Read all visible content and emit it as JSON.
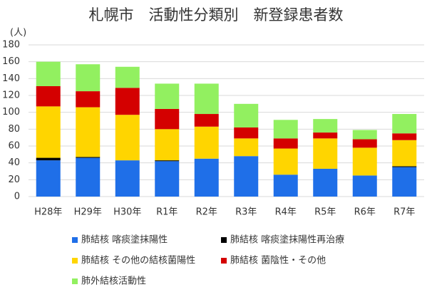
{
  "chart_data": {
    "type": "stacked-bar",
    "title": "札幌市　活動性分類別　新登録患者数",
    "y_unit": "(人)",
    "categories": [
      "H28年",
      "H29年",
      "H30年",
      "R1年",
      "R2年",
      "R3年",
      "R4年",
      "R5年",
      "R6年",
      "R7年"
    ],
    "series": [
      {
        "name": "肺結核 喀痰塗抹陽性",
        "color": "#1f6fe8",
        "values": [
          43,
          46,
          43,
          42,
          45,
          48,
          26,
          33,
          25,
          35
        ]
      },
      {
        "name": "肺結核 喀痰塗抹陽性再治療",
        "color": "#000000",
        "values": [
          3,
          1,
          0,
          1,
          0,
          0,
          0,
          0,
          0,
          1
        ]
      },
      {
        "name": "肺結核 その他の結核菌陽性",
        "color": "#ffd500",
        "values": [
          61,
          59,
          54,
          37,
          38,
          21,
          31,
          36,
          33,
          31
        ]
      },
      {
        "name": "肺結核 菌陰性・その他",
        "color": "#d40000",
        "values": [
          24,
          19,
          32,
          24,
          15,
          13,
          12,
          7,
          10,
          8
        ]
      },
      {
        "name": "肺外結核活動性",
        "color": "#92f060",
        "values": [
          29,
          32,
          25,
          30,
          36,
          28,
          22,
          16,
          11,
          23
        ]
      }
    ],
    "ylim": [
      0,
      180
    ],
    "yticks": [
      0,
      20,
      40,
      60,
      80,
      100,
      120,
      140,
      160,
      180
    ],
    "grid": true
  }
}
